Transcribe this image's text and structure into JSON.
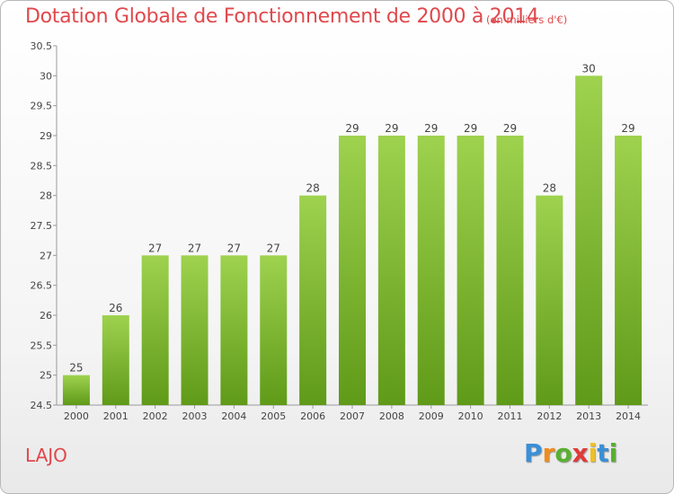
{
  "header": {
    "title": "Dotation Globale de Fonctionnement de 2000 à 2014",
    "subtitle": "(en milliers d'€)"
  },
  "footer": {
    "commune": "LAJO",
    "logo_letters": [
      {
        "char": "P",
        "color": "#3a8fd6"
      },
      {
        "char": "r",
        "color": "#f08c1e"
      },
      {
        "char": "o",
        "color": "#58b030"
      },
      {
        "char": "x",
        "color": "#e03a3a"
      },
      {
        "char": "i",
        "color": "#f0c020"
      },
      {
        "char": "t",
        "color": "#3a8fd6"
      },
      {
        "char": "i",
        "color": "#58b030"
      }
    ]
  },
  "chart_data": {
    "type": "bar",
    "title": "Dotation Globale de Fonctionnement de 2000 à 2014",
    "subtitle": "(en milliers d'€)",
    "xlabel": "",
    "ylabel": "",
    "categories": [
      "2000",
      "2001",
      "2002",
      "2003",
      "2004",
      "2005",
      "2006",
      "2007",
      "2008",
      "2009",
      "2010",
      "2011",
      "2012",
      "2013",
      "2014"
    ],
    "values": [
      25,
      26,
      27,
      27,
      27,
      27,
      28,
      29,
      29,
      29,
      29,
      29,
      28,
      30,
      29
    ],
    "data_labels": [
      "25",
      "26",
      "27",
      "27",
      "27",
      "27",
      "28",
      "29",
      "29",
      "29",
      "29",
      "29",
      "28",
      "30",
      "29"
    ],
    "ylim": [
      24.5,
      30.5
    ],
    "yticks": [
      "24.5",
      "25",
      "25.5",
      "26",
      "26.5",
      "27",
      "27.5",
      "28",
      "28.5",
      "29",
      "29.5",
      "30",
      "30.5"
    ],
    "grid": false,
    "bar_color": "#8cc63f",
    "bar_color_dark": "#5f9a1a"
  }
}
